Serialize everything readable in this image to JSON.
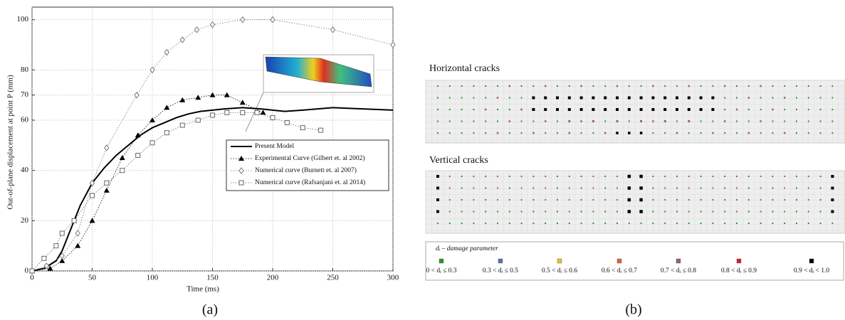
{
  "chart_data": {
    "type": "line",
    "ylabel": "Out-of-plane displacement at point P (mm)",
    "xlabel": "Time (ms)",
    "xlim": [
      0,
      300
    ],
    "xticks": [
      0,
      50,
      100,
      150,
      200,
      250,
      300
    ],
    "ylim": [
      0,
      105
    ],
    "yticks": [
      0,
      20,
      40,
      60,
      70,
      80,
      100
    ],
    "grid": true,
    "legend": "center-right",
    "series": [
      {
        "name": "Present Model",
        "color": "#000000",
        "marker": "none",
        "dash": "solid",
        "x": [
          0,
          10,
          20,
          25,
          30,
          35,
          40,
          50,
          60,
          70,
          80,
          90,
          100,
          110,
          120,
          130,
          140,
          150,
          160,
          175,
          190,
          200,
          210,
          225,
          250,
          275,
          300
        ],
        "values": [
          0,
          1,
          4,
          8,
          14,
          20,
          26,
          35,
          41,
          46,
          50,
          54,
          57,
          59,
          61,
          62.5,
          63.5,
          64,
          64.5,
          65,
          64.5,
          64,
          63.5,
          64,
          65,
          64.5,
          64
        ]
      },
      {
        "name": "Experimental Curve (Gilbert et. al 2002)",
        "color": "#000000",
        "marker": "triangle",
        "dash": "dotted",
        "x": [
          0,
          15,
          25,
          38,
          50,
          62,
          75,
          88,
          100,
          112,
          125,
          138,
          150,
          162,
          175,
          192
        ],
        "values": [
          0,
          1,
          4,
          10,
          20,
          32,
          45,
          54,
          60,
          65,
          68,
          69,
          70,
          70,
          67,
          63
        ]
      },
      {
        "name": "Numerical curve (Burnett et. al 2007)",
        "color": "#777777",
        "marker": "diamond",
        "dash": "dotted",
        "x": [
          0,
          12,
          25,
          38,
          50,
          62,
          87,
          100,
          112,
          125,
          137,
          150,
          175,
          200,
          250,
          300
        ],
        "values": [
          0,
          2,
          6,
          15,
          35,
          49,
          70,
          80,
          87,
          92,
          96,
          98,
          100,
          100,
          96,
          90
        ]
      },
      {
        "name": "Numerical curve (Rafsanjani et. al 2014)",
        "color": "#666666",
        "marker": "square",
        "dash": "dotted",
        "x": [
          0,
          10,
          20,
          25,
          35,
          50,
          62,
          75,
          88,
          100,
          112,
          125,
          138,
          150,
          162,
          175,
          187,
          200,
          212,
          225,
          240
        ],
        "values": [
          0,
          5,
          10,
          15,
          20,
          30,
          35,
          40,
          46,
          51,
          55,
          58,
          60,
          62,
          63,
          63,
          63,
          61,
          59,
          57,
          56
        ]
      }
    ]
  },
  "captions": {
    "a": "(a)",
    "b": "(b)"
  },
  "panel_b": {
    "horizontal": "Horizontal cracks",
    "vertical": "Vertical cracks",
    "legend_title": "dᵢ – damage parameter",
    "legend": [
      {
        "label": "0 < dᵢ ≤ 0.3",
        "color": "#2a9a2a"
      },
      {
        "label": "0.3 < dᵢ ≤ 0.5",
        "color": "#5a6fb0"
      },
      {
        "label": "0.5 < dᵢ ≤ 0.6",
        "color": "#e8c51a"
      },
      {
        "label": "0.6 < dᵢ ≤ 0.7",
        "color": "#d8643a"
      },
      {
        "label": "0.7 < dᵢ ≤ 0.8",
        "color": "#9a6070"
      },
      {
        "label": "0.8 < dᵢ ≤ 0.9",
        "color": "#e02020"
      },
      {
        "label": "0.9 < dᵢ < 1.0",
        "color": "#000000"
      }
    ]
  }
}
